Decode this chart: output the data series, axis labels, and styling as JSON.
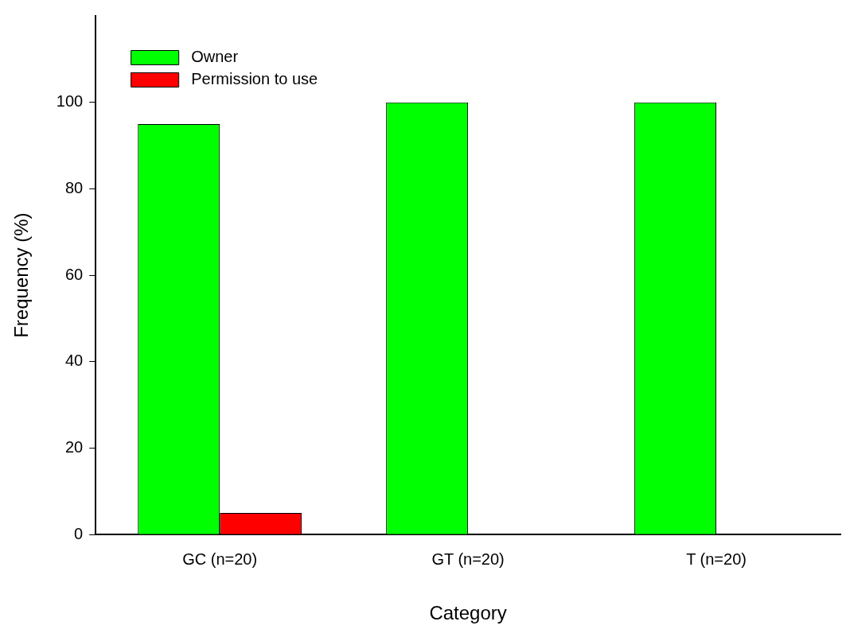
{
  "chart_data": {
    "type": "bar",
    "xlabel": "Category",
    "ylabel": "Frequency (%)",
    "categories": [
      "GC (n=20)",
      "GT (n=20)",
      "T (n=20)"
    ],
    "series": [
      {
        "name": "Owner",
        "color": "#00ff00",
        "values": [
          95,
          100,
          100
        ]
      },
      {
        "name": "Permission to use",
        "color": "#ff0000",
        "values": [
          5,
          0,
          0
        ]
      }
    ],
    "ylim": [
      0,
      120
    ],
    "yticks": [
      0,
      20,
      40,
      60,
      80,
      100
    ],
    "grid": false,
    "legend": "top left"
  }
}
